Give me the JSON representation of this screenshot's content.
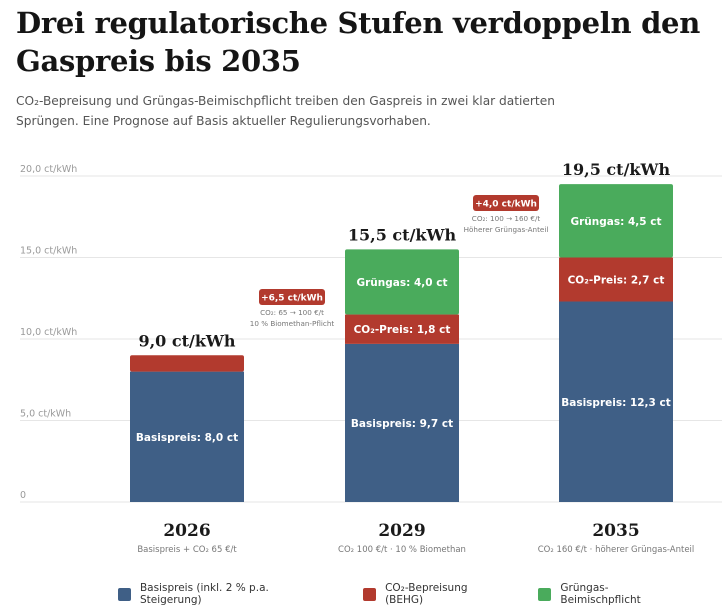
{
  "header": {
    "title": "Drei regulatorische Stufen verdoppeln den Gaspreis bis 2035",
    "subtitle": "CO₂-Bepreisung und Grüngas-Beimischpflicht treiben den Gaspreis in zwei klar datierten Sprüngen. Eine Prognose auf Basis aktueller Regulierungsvorhaben."
  },
  "colors": {
    "basis": "#3f5f86",
    "co2": "#b23a2e",
    "gruen": "#4aab5c",
    "grid": "#e6e6e6",
    "axis_text": "#9a9a9a",
    "badge": "#b23a2e"
  },
  "chart_data": {
    "type": "bar",
    "stacked": true,
    "title": "Drei regulatorische Stufen verdoppeln den Gaspreis bis 2035",
    "unit": "ct/kWh",
    "ylim": [
      0,
      20
    ],
    "yticks": [
      0,
      5,
      10,
      15,
      20
    ],
    "ytick_labels": [
      "0",
      "5,0 ct/kWh",
      "10,0 ct/kWh",
      "15,0 ct/kWh",
      "20,0 ct/kWh"
    ],
    "grid": true,
    "legend_position": "bottom",
    "categories": [
      "2026",
      "2029",
      "2035"
    ],
    "category_sublabels": [
      "Basispreis + CO₂ 65 €/t",
      "CO₂ 100 €/t · 10 % Biomethan",
      "CO₂ 160 €/t · höherer Grüngas-Anteil"
    ],
    "totals": [
      9.0,
      15.5,
      19.5
    ],
    "total_labels": [
      "9,0 ct/kWh",
      "15,5 ct/kWh",
      "19,5 ct/kWh"
    ],
    "series": [
      {
        "name": "Basispreis (inkl. 2 % p.a. Steigerung)",
        "color": "#3f5f86",
        "values": [
          8.0,
          9.7,
          12.3
        ],
        "labels": [
          "Basispreis: 8,0 ct",
          "Basispreis: 9,7 ct",
          "Basispreis: 12,3 ct"
        ]
      },
      {
        "name": "CO₂-Bepreisung (BEHG)",
        "color": "#b23a2e",
        "values": [
          1.0,
          1.8,
          2.7
        ],
        "labels": [
          "",
          "CO₂-Preis: 1,8 ct",
          "CO₂-Preis: 2,7 ct"
        ]
      },
      {
        "name": "Grüngas-Beimischpflicht",
        "color": "#4aab5c",
        "values": [
          0,
          4.0,
          4.5
        ],
        "labels": [
          "",
          "Grüngas: 4,0 ct",
          "Grüngas: 4,5 ct"
        ]
      }
    ],
    "annotations": [
      {
        "between": [
          "2026",
          "2029"
        ],
        "badge": "+6,5 ct/kWh",
        "lines": [
          "CO₂: 65 → 100 €/t",
          "10 % Biomethan-Pflicht"
        ]
      },
      {
        "between": [
          "2029",
          "2035"
        ],
        "badge": "+4,0 ct/kWh",
        "lines": [
          "CO₂: 100 → 160 €/t",
          "Höherer Grüngas-Anteil"
        ]
      }
    ]
  },
  "legend": {
    "items": [
      {
        "label": "Basispreis (inkl. 2 % p.a. Steigerung)",
        "color": "#3f5f86"
      },
      {
        "label": "CO₂-Bepreisung (BEHG)",
        "color": "#b23a2e"
      },
      {
        "label": "Grüngas-Beimischpflicht",
        "color": "#4aab5c"
      }
    ]
  }
}
